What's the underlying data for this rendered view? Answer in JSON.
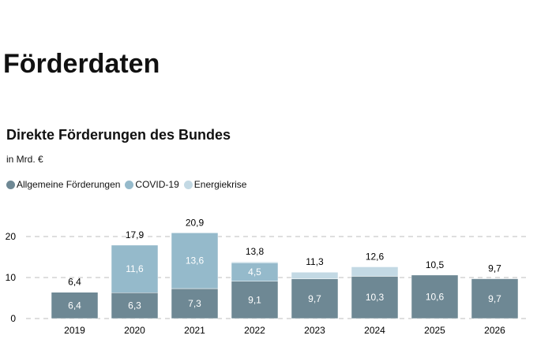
{
  "page": {
    "title": "Förderdaten"
  },
  "chart_data": {
    "type": "bar",
    "stacked": true,
    "title": "Direkte Förderungen des Bundes",
    "subtitle": "in Mrd. €",
    "xlabel": "",
    "ylabel": "",
    "ylim": [
      0,
      21
    ],
    "yticks": [
      0,
      10,
      20
    ],
    "grid": true,
    "legend_position": "top-left",
    "categories": [
      "2019",
      "2020",
      "2021",
      "2022",
      "2023",
      "2024",
      "2025",
      "2026"
    ],
    "series": [
      {
        "name": "Allgemeine Förderungen",
        "color": "#6e8894",
        "values": [
          6.4,
          6.3,
          7.3,
          9.1,
          9.7,
          10.3,
          10.6,
          9.7
        ],
        "labels": [
          "6,4",
          "6,3",
          "7,3",
          "9,1",
          "9,7",
          "10,3",
          "10,6",
          "9,7"
        ]
      },
      {
        "name": "COVID-19",
        "color": "#95bacb",
        "values": [
          0,
          11.6,
          13.6,
          4.5,
          0,
          0,
          0,
          0
        ],
        "labels": [
          "",
          "11,6",
          "13,6",
          "4,5",
          "",
          "",
          "",
          ""
        ]
      },
      {
        "name": "Energiekrise",
        "color": "#c3d9e4",
        "values": [
          0,
          0,
          0,
          0.2,
          1.6,
          2.3,
          0,
          0
        ],
        "labels": [
          "",
          "",
          "",
          "",
          "",
          "",
          "",
          ""
        ]
      }
    ],
    "totals": [
      "6,4",
      "17,9",
      "20,9",
      "13,8",
      "11,3",
      "12,6",
      "10,5",
      "9,7"
    ]
  }
}
